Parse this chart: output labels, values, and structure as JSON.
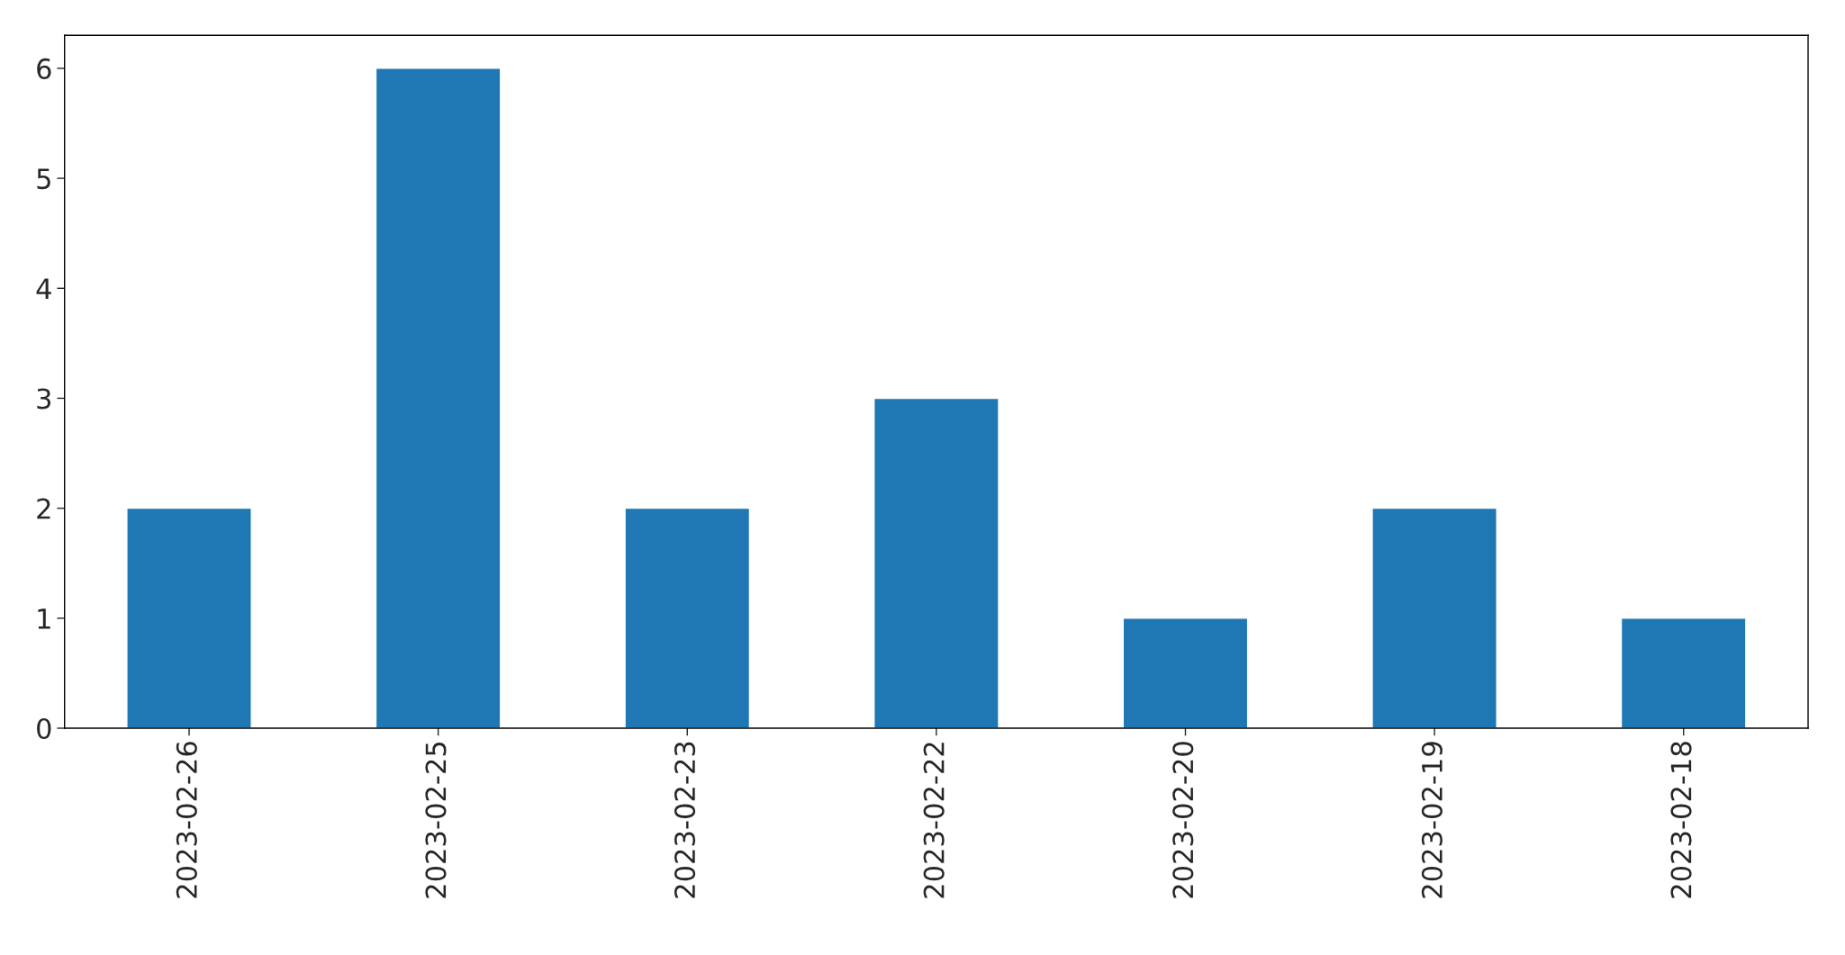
{
  "chart_data": {
    "type": "bar",
    "categories": [
      "2023-02-26",
      "2023-02-25",
      "2023-02-23",
      "2023-02-22",
      "2023-02-20",
      "2023-02-19",
      "2023-02-18"
    ],
    "values": [
      2,
      6,
      2,
      3,
      1,
      2,
      1
    ],
    "color": "#1f77b4",
    "ylim": [
      0,
      6.3
    ],
    "yticks": [
      0,
      1,
      2,
      3,
      4,
      5,
      6
    ],
    "grid": false,
    "legend": false
  }
}
